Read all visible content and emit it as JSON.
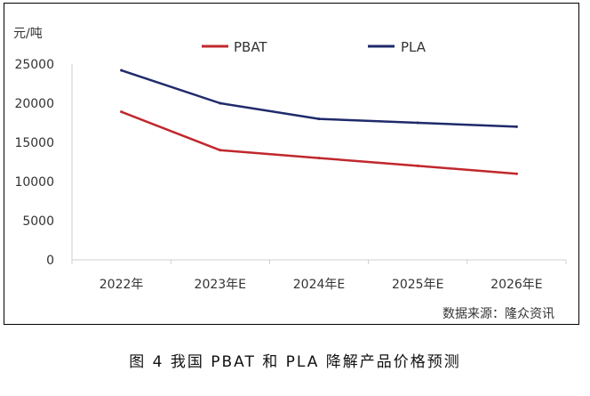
{
  "chart_data": {
    "type": "line",
    "categories": [
      "2022年",
      "2023年E",
      "2024年E",
      "2025年E",
      "2026年E"
    ],
    "series": [
      {
        "name": "PBAT",
        "values": [
          18900,
          14000,
          13000,
          12000,
          11000
        ],
        "color": "#c0282d"
      },
      {
        "name": "PLA",
        "values": [
          24200,
          20000,
          18000,
          17500,
          17000
        ],
        "color": "#1f2a6b"
      }
    ],
    "yunit": "元/吨",
    "ylim": [
      0,
      25000
    ],
    "yticks": [
      0,
      5000,
      10000,
      15000,
      20000,
      25000
    ],
    "legend_position": "top",
    "grid": false
  },
  "source_text": "数据来源：隆众资讯",
  "caption": "图 4  我国 PBAT 和 PLA 降解产品价格预测"
}
